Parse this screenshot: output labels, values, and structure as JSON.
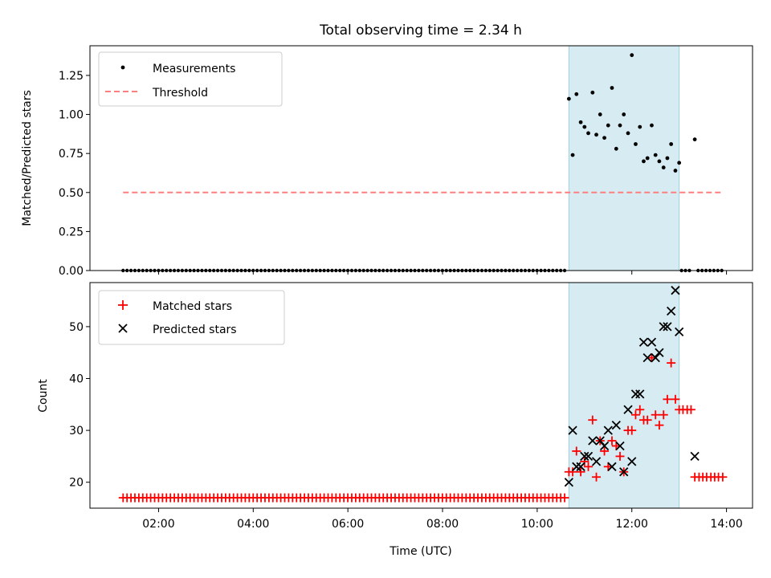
{
  "figure": {
    "title": "Total observing time = 2.34 h",
    "xlabel": "Time (UTC)",
    "xticks": [
      {
        "t": 2,
        "label": "02:00"
      },
      {
        "t": 4,
        "label": "04:00"
      },
      {
        "t": 6,
        "label": "06:00"
      },
      {
        "t": 8,
        "label": "08:00"
      },
      {
        "t": 10,
        "label": "10:00"
      },
      {
        "t": 12,
        "label": "12:00"
      },
      {
        "t": 14,
        "label": "14:00"
      }
    ],
    "xlim": [
      0.55,
      14.55
    ],
    "shade_span": [
      10.67,
      13.0
    ],
    "shade_color": "#add8e6"
  },
  "chart_data": [
    {
      "type": "scatter",
      "ylabel": "Matched/Predicted stars",
      "ylim": [
        0,
        1.44
      ],
      "yticks": [
        "0.00",
        "0.25",
        "0.50",
        "0.75",
        "1.00",
        "1.25"
      ],
      "legend": {
        "placement": "upper-left",
        "entries": [
          "Measurements",
          "Threshold"
        ]
      },
      "threshold": {
        "name": "Threshold",
        "y": 0.5,
        "x_range": [
          1.25,
          13.9
        ],
        "color": "#ff7f7f"
      },
      "measurements": {
        "name": "Measurements",
        "color": "#000000",
        "zero_runs": [
          {
            "from": 1.25,
            "to": 10.6,
            "step": 0.0833
          },
          {
            "from": 13.05,
            "to": 13.25,
            "step": 0.0833
          },
          {
            "from": 13.4,
            "to": 13.9,
            "step": 0.0833
          }
        ],
        "x": [
          10.67,
          10.75,
          10.83,
          10.92,
          11.0,
          11.08,
          11.17,
          11.25,
          11.33,
          11.42,
          11.5,
          11.58,
          11.67,
          11.75,
          11.83,
          11.92,
          12.0,
          12.08,
          12.17,
          12.25,
          12.33,
          12.42,
          12.5,
          12.58,
          12.67,
          12.75,
          12.83,
          12.92,
          13.0,
          13.33
        ],
        "y": [
          1.1,
          0.74,
          1.13,
          0.95,
          0.92,
          0.88,
          1.14,
          0.87,
          1.0,
          0.85,
          0.93,
          1.17,
          0.78,
          0.93,
          1.0,
          0.88,
          1.38,
          0.81,
          0.92,
          0.7,
          0.72,
          0.93,
          0.74,
          0.7,
          0.66,
          0.72,
          0.81,
          0.64,
          0.69,
          0.84
        ]
      }
    },
    {
      "type": "scatter",
      "ylabel": "Count",
      "ylim": [
        15,
        58.5
      ],
      "yticks": [
        "20",
        "30",
        "40",
        "50"
      ],
      "legend": {
        "placement": "upper-left",
        "entries": [
          "Matched stars",
          "Predicted stars"
        ]
      },
      "matched_baseline": {
        "from": 1.25,
        "to": 10.6,
        "step": 0.0833,
        "value": 17
      },
      "series": [
        {
          "name": "Matched stars",
          "color": "#ff0000",
          "marker": "plus",
          "x": [
            10.67,
            10.75,
            10.83,
            10.92,
            11.0,
            11.08,
            11.17,
            11.25,
            11.33,
            11.42,
            11.5,
            11.58,
            11.67,
            11.75,
            11.83,
            11.92,
            12.0,
            12.08,
            12.17,
            12.25,
            12.33,
            12.42,
            12.5,
            12.58,
            12.67,
            12.75,
            12.83,
            12.92,
            13.0,
            13.08,
            13.17,
            13.25,
            13.33,
            13.42,
            13.5,
            13.58,
            13.67,
            13.75,
            13.83,
            13.92
          ],
          "y": [
            22,
            22,
            26,
            22,
            24,
            23,
            32,
            21,
            28,
            26,
            23,
            28,
            27,
            25,
            22,
            30,
            30,
            33,
            34,
            32,
            32,
            44,
            33,
            31,
            33,
            36,
            43,
            36,
            34,
            34,
            34,
            34,
            21,
            21,
            21,
            21,
            21,
            21,
            21,
            21
          ]
        },
        {
          "name": "Predicted stars",
          "color": "#000000",
          "marker": "x",
          "x": [
            10.67,
            10.75,
            10.83,
            10.92,
            11.0,
            11.08,
            11.17,
            11.25,
            11.33,
            11.42,
            11.5,
            11.58,
            11.67,
            11.75,
            11.83,
            11.92,
            12.0,
            12.08,
            12.17,
            12.25,
            12.33,
            12.42,
            12.5,
            12.58,
            12.67,
            12.75,
            12.83,
            12.92,
            13.0,
            13.33
          ],
          "y": [
            20,
            30,
            23,
            23,
            25,
            25,
            28,
            24,
            28,
            27,
            30,
            23,
            31,
            27,
            22,
            34,
            24,
            37,
            37,
            47,
            44,
            47,
            44,
            45,
            50,
            50,
            53,
            57,
            49,
            25
          ]
        }
      ]
    }
  ]
}
